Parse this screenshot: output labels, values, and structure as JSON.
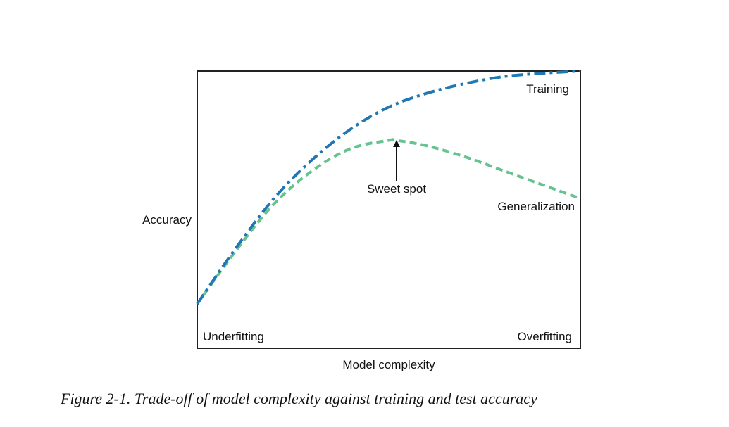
{
  "chart_data": {
    "type": "line",
    "xlabel": "Model complexity",
    "ylabel": "Accuracy",
    "xlim": [
      0,
      1
    ],
    "ylim": [
      0,
      1
    ],
    "grid": false,
    "series": [
      {
        "name": "Training",
        "color": "#1f77b4",
        "dash": "dash-dot",
        "x": [
          0.0,
          0.1,
          0.2,
          0.3,
          0.4,
          0.5,
          0.6,
          0.7,
          0.8,
          0.9,
          1.0
        ],
        "y": [
          0.16,
          0.36,
          0.54,
          0.68,
          0.79,
          0.87,
          0.92,
          0.955,
          0.98,
          0.992,
          1.0
        ]
      },
      {
        "name": "Generalization",
        "color": "#66c28f",
        "dash": "dashed",
        "x": [
          0.0,
          0.1,
          0.2,
          0.3,
          0.4,
          0.5,
          0.52,
          0.6,
          0.7,
          0.8,
          0.9,
          1.0
        ],
        "y": [
          0.16,
          0.35,
          0.52,
          0.64,
          0.72,
          0.75,
          0.75,
          0.73,
          0.69,
          0.64,
          0.59,
          0.54
        ]
      }
    ],
    "annotations": [
      {
        "text": "Sweet spot",
        "x": 0.52,
        "y": 0.75
      },
      {
        "text": "Underfitting"
      },
      {
        "text": "Overfitting"
      }
    ]
  },
  "caption": "Figure 2-1. Trade-off of model complexity against training and test accuracy"
}
